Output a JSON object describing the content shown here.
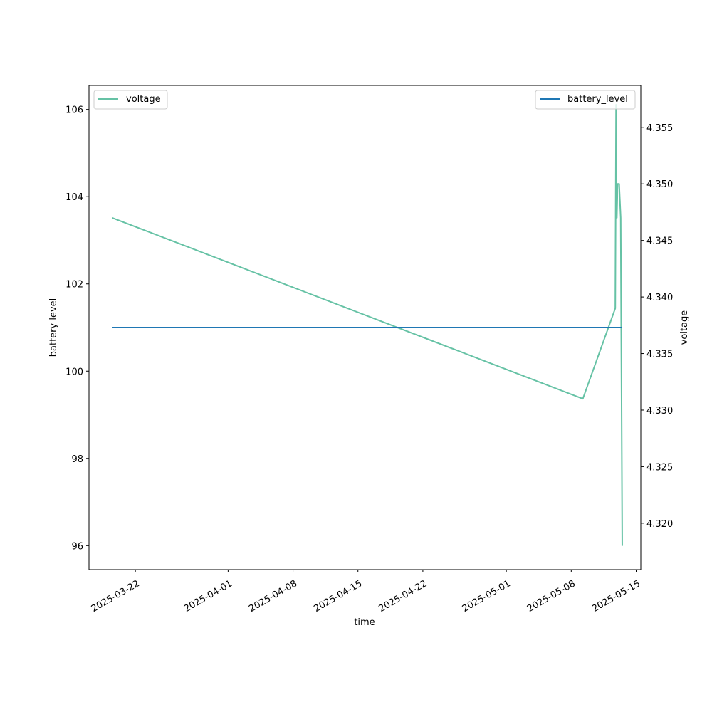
{
  "chart_data": {
    "type": "line",
    "xlabel": "time",
    "ylabel": "battery level",
    "y2label": "voltage",
    "x_ticks": [
      "2025-03-22",
      "2025-04-01",
      "2025-04-08",
      "2025-04-15",
      "2025-04-22",
      "2025-05-01",
      "2025-05-08",
      "2025-05-15"
    ],
    "xlim": [
      "2025-03-17T00:00",
      "2025-05-15T12:00"
    ],
    "ylim": [
      95.45,
      106.55
    ],
    "y2lim": [
      4.3159,
      4.3587
    ],
    "y_ticks": [
      96,
      98,
      100,
      102,
      104,
      106
    ],
    "y2_ticks": [
      4.32,
      4.325,
      4.33,
      4.335,
      4.34,
      4.345,
      4.35,
      4.355
    ],
    "grid": false,
    "series": [
      {
        "name": "battery_level",
        "axis": "left",
        "color": "#1f77b4",
        "legend_position": "upper right",
        "points": [
          {
            "x": "2025-03-19T12:00",
            "y": 101
          },
          {
            "x": "2025-05-13T12:00",
            "y": 101
          }
        ]
      },
      {
        "name": "voltage",
        "axis": "right",
        "color": "#66c2a5",
        "legend_position": "upper left",
        "points": [
          {
            "x": "2025-03-19T12:00",
            "y": 4.347
          },
          {
            "x": "2025-05-09T06:00",
            "y": 4.331
          },
          {
            "x": "2025-05-12T18:00",
            "y": 4.339
          },
          {
            "x": "2025-05-12T20:00",
            "y": 4.357
          },
          {
            "x": "2025-05-12T22:00",
            "y": 4.347
          },
          {
            "x": "2025-05-13T00:00",
            "y": 4.35
          },
          {
            "x": "2025-05-13T04:00",
            "y": 4.35
          },
          {
            "x": "2025-05-13T08:00",
            "y": 4.347
          },
          {
            "x": "2025-05-13T12:00",
            "y": 4.318
          }
        ]
      }
    ]
  }
}
